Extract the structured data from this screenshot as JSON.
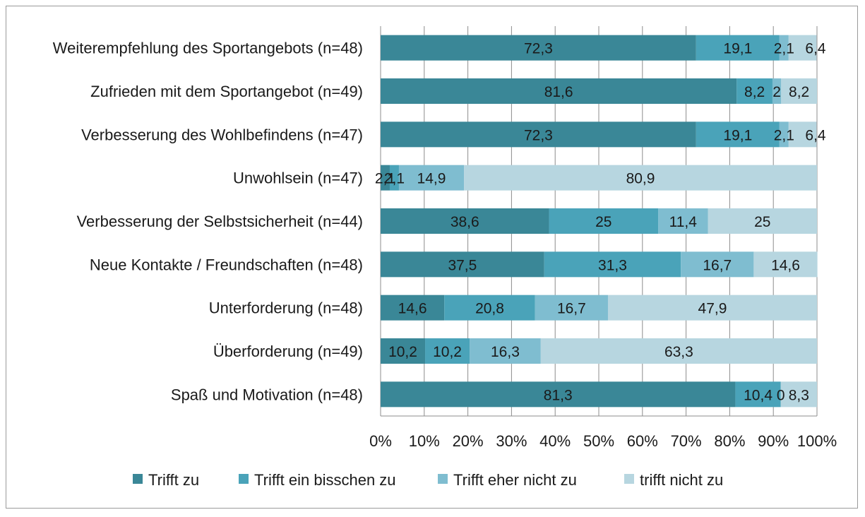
{
  "chart_data": {
    "type": "bar",
    "orientation": "horizontal",
    "stacked": "percent",
    "title": "",
    "xlabel": "",
    "ylabel": "",
    "xlim": [
      0,
      100
    ],
    "x_ticks": [
      "0%",
      "10%",
      "20%",
      "30%",
      "40%",
      "50%",
      "60%",
      "70%",
      "80%",
      "90%",
      "100%"
    ],
    "grid": "vertical",
    "legend_position": "bottom",
    "categories": [
      "Weiterempfehlung des Sportangebots (n=48)",
      "Zufrieden mit dem Sportangebot (n=49)",
      "Verbesserung des Wohlbefindens (n=47)",
      "Unwohlsein (n=47)",
      "Verbesserung der Selbstsicherheit (n=44)",
      "Neue Kontakte / Freundschaften (n=48)",
      "Unterforderung (n=48)",
      "Überforderung (n=49)",
      "Spaß und Motivation (n=48)"
    ],
    "series": [
      {
        "name": "Trifft zu",
        "color": "#3a8797",
        "values": [
          72.3,
          81.6,
          72.3,
          2.1,
          38.6,
          37.5,
          14.6,
          10.2,
          81.3
        ],
        "labels": [
          "72,3",
          "81,6",
          "72,3",
          "2,1",
          "38,6",
          "37,5",
          "14,6",
          "10,2",
          "81,3"
        ]
      },
      {
        "name": "Trifft ein bisschen zu",
        "color": "#4aa3b9",
        "values": [
          19.1,
          8.2,
          19.1,
          2.1,
          25,
          31.3,
          20.8,
          10.2,
          10.4
        ],
        "labels": [
          "19,1",
          "8,2",
          "19,1",
          "2,1",
          "25",
          "31,3",
          "20,8",
          "10,2",
          "10,4"
        ]
      },
      {
        "name": "Trifft eher nicht zu",
        "color": "#7fbdd0",
        "values": [
          2.1,
          2,
          2.1,
          14.9,
          11.4,
          16.7,
          16.7,
          16.3,
          0
        ],
        "labels": [
          "2,1",
          "2",
          "2,1",
          "14,9",
          "11,4",
          "16,7",
          "16,7",
          "16,3",
          "0"
        ]
      },
      {
        "name": "trifft nicht zu",
        "color": "#b7d6e0",
        "values": [
          6.4,
          8.2,
          6.4,
          80.9,
          25,
          14.6,
          47.9,
          63.3,
          8.3
        ],
        "labels": [
          "6,4",
          "8,2",
          "6,4",
          "80,9",
          "25",
          "14,6",
          "47,9",
          "63,3",
          "8,3"
        ]
      }
    ]
  }
}
